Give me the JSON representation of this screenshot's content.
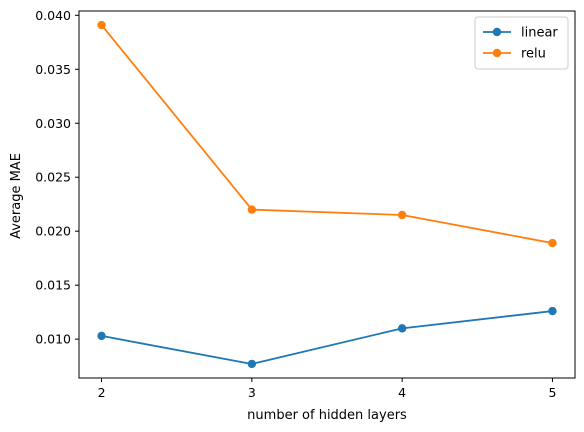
{
  "chart_data": {
    "type": "line",
    "title": "",
    "xlabel": "number of hidden layers",
    "ylabel": "Average MAE",
    "x": [
      2,
      3,
      4,
      5
    ],
    "x_ticks": [
      "2",
      "3",
      "4",
      "5"
    ],
    "xlim": [
      1.85,
      5.15
    ],
    "ylim": [
      0.0064,
      0.0404
    ],
    "y_ticks": [
      0.01,
      0.015,
      0.02,
      0.025,
      0.03,
      0.035,
      0.04
    ],
    "y_tick_labels": [
      "0.010",
      "0.015",
      "0.020",
      "0.025",
      "0.030",
      "0.035",
      "0.040"
    ],
    "grid": false,
    "legend_position": "top-right",
    "series": [
      {
        "name": "linear",
        "color": "#1f77b4",
        "values": [
          0.0103,
          0.0077,
          0.011,
          0.0126
        ]
      },
      {
        "name": "relu",
        "color": "#ff7f0e",
        "values": [
          0.0391,
          0.022,
          0.0215,
          0.0189
        ]
      }
    ]
  }
}
